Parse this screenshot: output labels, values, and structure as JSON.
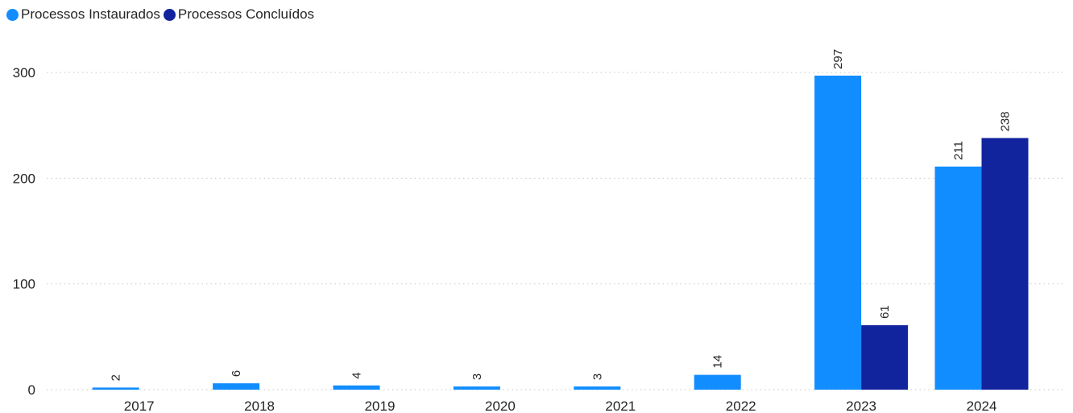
{
  "chart_data": {
    "type": "bar",
    "categories": [
      "2017",
      "2018",
      "2019",
      "2020",
      "2021",
      "2022",
      "2023",
      "2024"
    ],
    "series": [
      {
        "name": "Processos Instaurados",
        "color": "#118DFF",
        "values": [
          2,
          6,
          4,
          3,
          3,
          14,
          297,
          211
        ]
      },
      {
        "name": "Processos Concluídos",
        "color": "#12239E",
        "values": [
          null,
          null,
          null,
          null,
          null,
          null,
          61,
          238
        ]
      }
    ],
    "title": "",
    "xlabel": "",
    "ylabel": "",
    "ylim": [
      0,
      330
    ],
    "yticks": [
      0,
      100,
      200,
      300
    ],
    "grid": true,
    "legend_position": "top-left",
    "data_labels_rotated": true
  }
}
